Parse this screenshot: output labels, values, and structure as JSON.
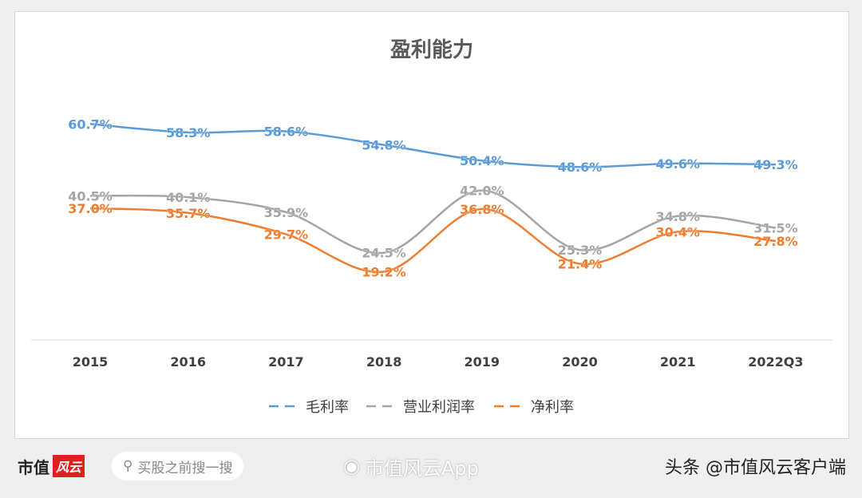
{
  "chart_data": {
    "type": "line",
    "title": "盈利能力",
    "categories": [
      "2015",
      "2016",
      "2017",
      "2018",
      "2019",
      "2020",
      "2021",
      "2022Q3"
    ],
    "series": [
      {
        "name": "毛利率",
        "color": "#5b9bd5",
        "values": [
          60.7,
          58.3,
          58.6,
          54.8,
          50.4,
          48.6,
          49.6,
          49.3
        ],
        "labels": [
          "60.7%",
          "58.3%",
          "58.6%",
          "54.8%",
          "50.4%",
          "48.6%",
          "49.6%",
          "49.3%"
        ]
      },
      {
        "name": "营业利润率",
        "color": "#a5a5a5",
        "values": [
          40.5,
          40.1,
          35.9,
          24.5,
          42.0,
          25.3,
          34.8,
          31.5
        ],
        "labels": [
          "40.5%",
          "40.1%",
          "35.9%",
          "24.5%",
          "42.0%",
          "25.3%",
          "34.8%",
          "31.5%"
        ]
      },
      {
        "name": "净利率",
        "color": "#ed7d31",
        "values": [
          37.0,
          35.7,
          29.7,
          19.2,
          36.8,
          21.4,
          30.4,
          27.8
        ],
        "labels": [
          "37.0%",
          "35.7%",
          "29.7%",
          "19.2%",
          "36.8%",
          "21.4%",
          "30.4%",
          "27.8%"
        ]
      }
    ],
    "ylim": [
      0,
      70
    ],
    "grid": false,
    "legend": "bottom"
  },
  "footer": {
    "brand": "市值",
    "brand_logo": "风云",
    "search_placeholder": "买股之前搜一搜",
    "weibo": "市值风云App",
    "toutiao": "头条 @市值风云客户端"
  }
}
